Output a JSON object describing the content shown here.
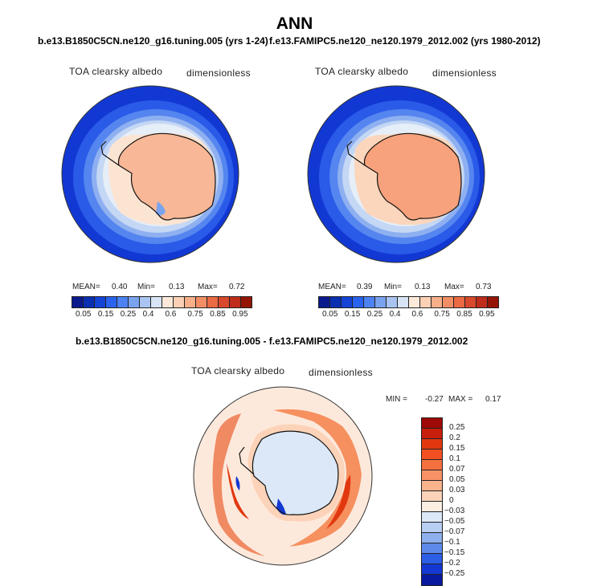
{
  "title": "ANN",
  "panel1": {
    "case": "b.e13.B1850C5CN.ne120_g16.tuning.005 (yrs 1-24)",
    "variable": "TOA clearsky albedo",
    "units": "dimensionless",
    "mean_label": "MEAN=",
    "mean": "0.40",
    "min_label": "Min=",
    "min": "0.13",
    "max_label": "Max=",
    "max": "0.72"
  },
  "panel2": {
    "case": "f.e13.FAMIPC5.ne120_ne120.1979_2012.002 (yrs 1980-2012)",
    "variable": "TOA clearsky albedo",
    "units": "dimensionless",
    "mean_label": "MEAN=",
    "mean": "0.39",
    "min_label": "Min=",
    "min": "0.13",
    "max_label": "Max=",
    "max": "0.73"
  },
  "panel3": {
    "case": "b.e13.B1850C5CN.ne120_g16.tuning.005 - f.e13.FAMIPC5.ne120_ne120.1979_2012.002",
    "variable": "TOA clearsky albedo",
    "units": "dimensionless",
    "min_label": "MIN =",
    "min": "-0.27",
    "max_label": "MAX =",
    "max": "0.17"
  },
  "colorbar_abs": {
    "ticks": [
      "0.05",
      "0.15",
      "0.25",
      "0.4",
      "0.6",
      "0.75",
      "0.85",
      "0.95"
    ],
    "colors": [
      "#0a1a8c",
      "#0a2fb0",
      "#1543d6",
      "#2a63ee",
      "#4d82f2",
      "#7aa3ee",
      "#a9c4f0",
      "#d6e4f5",
      "#fde9da",
      "#fbd0b4",
      "#f7b08a",
      "#f28e66",
      "#ea6a44",
      "#d8482c",
      "#bf2c1c",
      "#951505"
    ]
  },
  "colorbar_diff": {
    "labels": [
      "0.25",
      "0.2",
      "0.15",
      "0.1",
      "0.07",
      "0.05",
      "0.03",
      "0",
      "−0.03",
      "−0.05",
      "−0.07",
      "−0.1",
      "−0.15",
      "−0.2",
      "−0.25"
    ],
    "colors": [
      "#9e0a06",
      "#c81e0c",
      "#e2380f",
      "#f25022",
      "#f5703f",
      "#f89264",
      "#fab38c",
      "#fcd3b8",
      "#fdeee2",
      "#dce8f7",
      "#b8cff2",
      "#8fb0ee",
      "#5d8aea",
      "#2d5fe6",
      "#1438d2",
      "#0a1aa0"
    ]
  }
}
